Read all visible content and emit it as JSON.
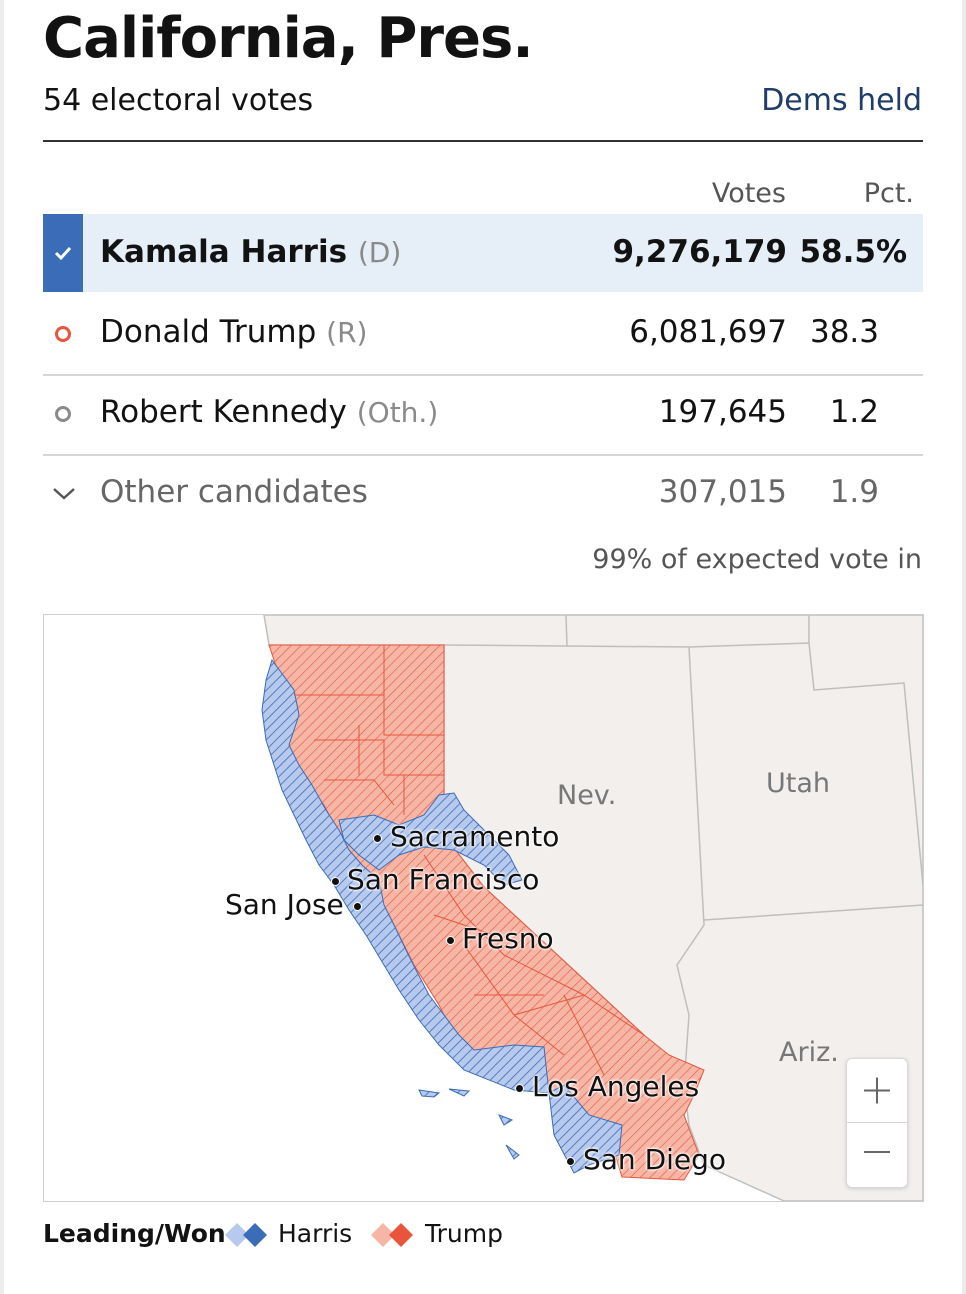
{
  "header": {
    "title": "California, Pres.",
    "electoral_votes": "54 electoral votes",
    "held_status": "Dems held"
  },
  "table": {
    "columns": {
      "votes": "Votes",
      "pct": "Pct."
    },
    "rows": [
      {
        "name": "Kamala Harris",
        "party": "(D)",
        "votes": "9,276,179",
        "pct": "58.5%",
        "winner": true,
        "color": "#3b6cb8"
      },
      {
        "name": "Donald Trump",
        "party": "(R)",
        "votes": "6,081,697",
        "pct": "38.3",
        "winner": false,
        "color": "#e8553c"
      },
      {
        "name": "Robert Kennedy",
        "party": "(Oth.)",
        "votes": "197,645",
        "pct": "1.2",
        "winner": false,
        "color": "#8a8a8a"
      }
    ],
    "other": {
      "label": "Other candidates",
      "votes": "307,015",
      "pct": "1.9"
    },
    "expected_vote": "99% of expected vote in"
  },
  "map": {
    "states": {
      "nevada": "Nev.",
      "utah": "Utah",
      "arizona": "Ariz."
    },
    "cities": {
      "sacramento": "Sacramento",
      "san_francisco": "San Francisco",
      "san_jose": "San Jose",
      "fresno": "Fresno",
      "los_angeles": "Los Angeles",
      "san_diego": "San Diego"
    },
    "zoom_in": "+",
    "zoom_out": "−",
    "colors": {
      "harris_fill": "#b7c9ec",
      "harris_stroke": "#3b6cb8",
      "trump_fill": "#f5b6a6",
      "trump_stroke": "#e8553c"
    }
  },
  "legend": {
    "title": "Leading/Won",
    "harris": "Harris",
    "trump": "Trump"
  }
}
